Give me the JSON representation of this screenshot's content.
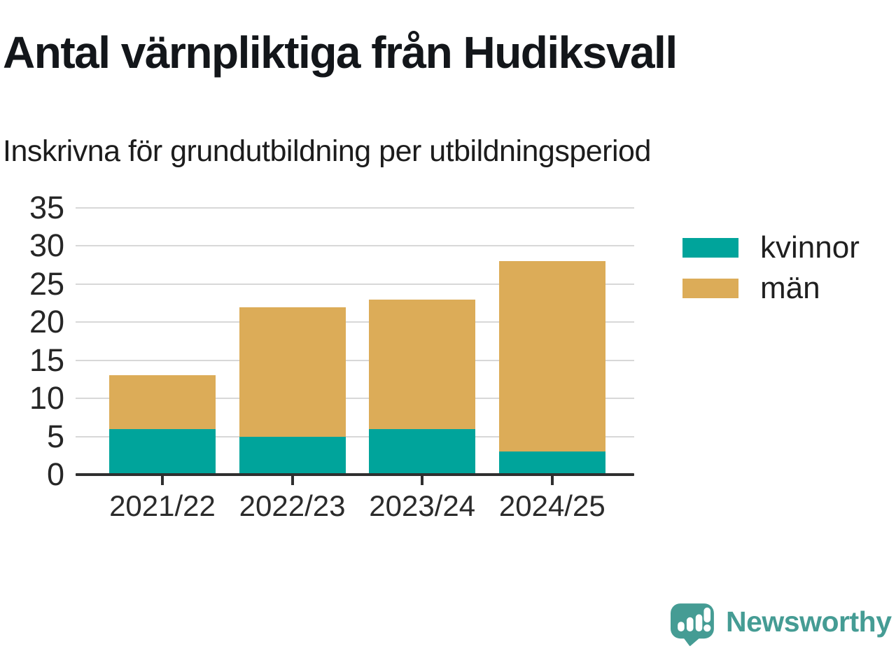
{
  "header": {
    "title": "Antal värnpliktiga från Hudiksvall",
    "subtitle": "Inskrivna för grundutbildning per utbildningsperiod"
  },
  "chart_data": {
    "type": "bar",
    "stacked": true,
    "title": "Antal värnpliktiga från Hudiksvall",
    "subtitle": "Inskrivna för grundutbildning per utbildningsperiod",
    "categories": [
      "2021/22",
      "2022/23",
      "2023/24",
      "2024/25"
    ],
    "series": [
      {
        "name": "kvinnor",
        "color": "#00a49b",
        "values": [
          6,
          5,
          6,
          3
        ]
      },
      {
        "name": "män",
        "color": "#dcac58",
        "values": [
          7,
          17,
          17,
          25
        ]
      }
    ],
    "stacked_totals": [
      13,
      22,
      23,
      28
    ],
    "xlabel": "",
    "ylabel": "",
    "ylim": [
      0,
      35
    ],
    "yticks": [
      0,
      5,
      10,
      15,
      20,
      25,
      30,
      35
    ],
    "grid": true,
    "legend_position": "right"
  },
  "branding": {
    "label": "Newsworthy",
    "icon": "speech-bubble-bar-chart-icon",
    "color": "#459c94"
  },
  "colors": {
    "kvinnor": "#00a49b",
    "man": "#dcac58",
    "grid": "#d8d8d8",
    "axis": "#2f2f2f",
    "title_text": "#13161a",
    "tick_text": "#262626"
  }
}
